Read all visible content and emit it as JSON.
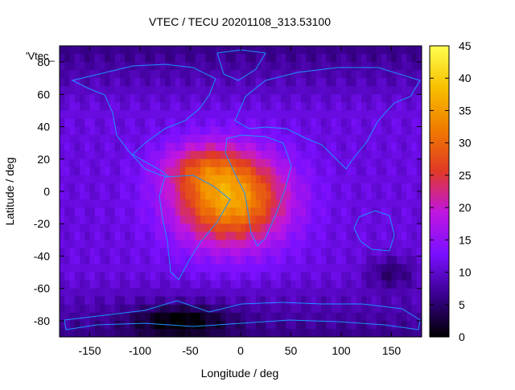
{
  "chart_data": {
    "type": "heatmap",
    "title": "VTEC / TECU 20201108_313.53100",
    "xlabel": "Longitude / deg",
    "ylabel": "Latitude / deg",
    "series_label": "'Vtec_",
    "xlim": [
      -180,
      180
    ],
    "ylim": [
      -90,
      90
    ],
    "x_ticks": [
      -150,
      -100,
      -50,
      0,
      50,
      100,
      150
    ],
    "y_ticks": [
      80,
      60,
      40,
      20,
      0,
      -20,
      -40,
      -60,
      -80
    ],
    "colorbar": {
      "range": [
        0,
        45
      ],
      "ticks": [
        0,
        5,
        10,
        15,
        20,
        25,
        30,
        35,
        40,
        45
      ],
      "colormap": [
        "#000000",
        "#3a008f",
        "#7a10ff",
        "#c016e0",
        "#e03a24",
        "#f07c00",
        "#f8c000",
        "#ffff50"
      ]
    },
    "grid": false,
    "approximate_vtec_features": [
      {
        "feature": "peak",
        "lon": -10,
        "lat": -5,
        "vtec": 36
      },
      {
        "feature": "crest",
        "lon": -40,
        "lat": 15,
        "vtec": 30
      },
      {
        "feature": "background_mid",
        "lon": 100,
        "lat": 0,
        "vtec": 12
      },
      {
        "feature": "low_north",
        "lon": 0,
        "lat": 85,
        "vtec": 5
      },
      {
        "feature": "low_south",
        "lon": -60,
        "lat": -80,
        "vtec": 1
      }
    ],
    "coastline_color": "#1e90ff"
  }
}
